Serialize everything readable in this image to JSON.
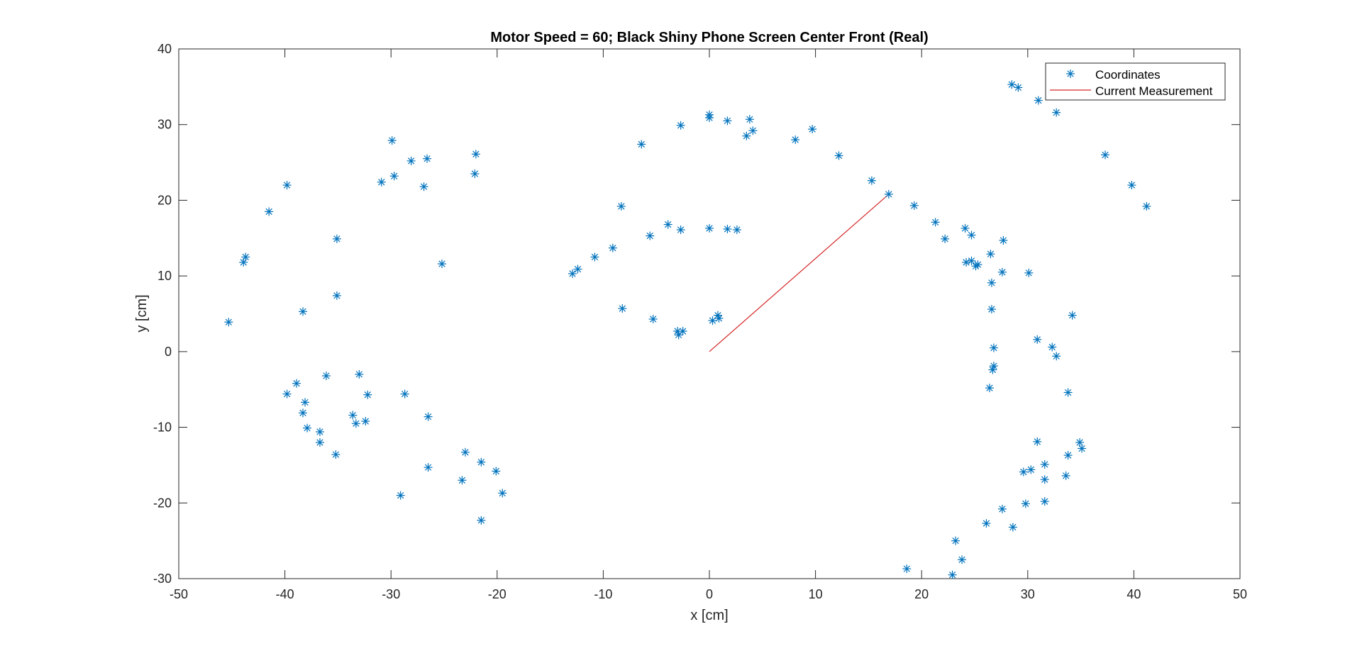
{
  "chart_data": {
    "type": "scatter",
    "title": "Motor Speed = 60; Black Shiny Phone Screen Center Front (Real)",
    "xlabel": "x [cm]",
    "ylabel": "y [cm]",
    "xlim": [
      -50,
      50
    ],
    "ylim": [
      -30,
      40
    ],
    "xticks": [
      -50,
      -40,
      -30,
      -20,
      -10,
      0,
      10,
      20,
      30,
      40,
      50
    ],
    "yticks": [
      -30,
      -20,
      -10,
      0,
      10,
      20,
      30,
      40
    ],
    "xtick_labels": [
      "-50",
      "-40",
      "-30",
      "-20",
      "-10",
      "0",
      "10",
      "20",
      "30",
      "40",
      "50"
    ],
    "ytick_labels": [
      "-30",
      "-20",
      "-10",
      "0",
      "10",
      "20",
      "30",
      "40"
    ],
    "grid": false,
    "legend": {
      "position": "top-right",
      "entries": [
        "Coordinates",
        "Current Measurement"
      ]
    },
    "colors": {
      "coordinates": "#0072BD",
      "current_measurement": "#D62728",
      "axes": "#262626"
    },
    "series": [
      {
        "name": "Coordinates",
        "marker": "asterisk",
        "points": [
          [
            -45.3,
            3.9
          ],
          [
            -43.9,
            11.8
          ],
          [
            -43.7,
            12.5
          ],
          [
            -41.5,
            18.5
          ],
          [
            -39.8,
            22.0
          ],
          [
            -38.3,
            5.3
          ],
          [
            -35.1,
            14.9
          ],
          [
            -35.1,
            7.4
          ],
          [
            -29.9,
            27.9
          ],
          [
            -30.9,
            22.4
          ],
          [
            -29.7,
            23.2
          ],
          [
            -28.1,
            25.2
          ],
          [
            -26.6,
            25.5
          ],
          [
            -26.9,
            21.8
          ],
          [
            -25.2,
            11.6
          ],
          [
            -22.0,
            26.1
          ],
          [
            -22.1,
            23.5
          ],
          [
            -39.8,
            -5.6
          ],
          [
            -38.9,
            -4.2
          ],
          [
            -38.1,
            -6.7
          ],
          [
            -38.3,
            -8.1
          ],
          [
            -37.9,
            -10.1
          ],
          [
            -36.7,
            -10.6
          ],
          [
            -36.7,
            -12.0
          ],
          [
            -36.1,
            -3.2
          ],
          [
            -35.2,
            -13.6
          ],
          [
            -33.6,
            -8.4
          ],
          [
            -33.3,
            -9.5
          ],
          [
            -33.0,
            -3.0
          ],
          [
            -32.4,
            -9.2
          ],
          [
            -32.2,
            -5.7
          ],
          [
            -28.7,
            -5.6
          ],
          [
            -29.1,
            -19.0
          ],
          [
            -26.5,
            -8.6
          ],
          [
            -26.5,
            -15.3
          ],
          [
            -23.0,
            -13.3
          ],
          [
            -23.3,
            -17.0
          ],
          [
            -21.5,
            -14.6
          ],
          [
            -21.5,
            -22.3
          ],
          [
            -20.1,
            -15.8
          ],
          [
            -19.5,
            -18.7
          ],
          [
            -12.9,
            10.3
          ],
          [
            -12.4,
            10.9
          ],
          [
            -10.8,
            12.5
          ],
          [
            -9.1,
            13.7
          ],
          [
            -8.3,
            19.2
          ],
          [
            -6.4,
            27.4
          ],
          [
            -5.6,
            15.3
          ],
          [
            -3.9,
            16.8
          ],
          [
            -2.7,
            16.1
          ],
          [
            -2.7,
            29.9
          ],
          [
            -8.2,
            5.7
          ],
          [
            -5.3,
            4.3
          ],
          [
            -3.0,
            2.7
          ],
          [
            -2.9,
            2.2
          ],
          [
            -2.5,
            2.7
          ],
          [
            0.0,
            31.3
          ],
          [
            0.0,
            30.9
          ],
          [
            0.0,
            16.3
          ],
          [
            0.3,
            4.1
          ],
          [
            0.8,
            4.8
          ],
          [
            0.9,
            4.4
          ],
          [
            1.7,
            30.5
          ],
          [
            1.7,
            16.2
          ],
          [
            2.6,
            16.1
          ],
          [
            3.5,
            28.5
          ],
          [
            3.8,
            30.7
          ],
          [
            4.1,
            29.2
          ],
          [
            8.1,
            28.0
          ],
          [
            9.7,
            29.4
          ],
          [
            12.2,
            25.9
          ],
          [
            15.3,
            22.6
          ],
          [
            16.9,
            20.8
          ],
          [
            19.3,
            19.3
          ],
          [
            21.3,
            17.1
          ],
          [
            22.2,
            14.9
          ],
          [
            24.1,
            16.3
          ],
          [
            24.7,
            15.4
          ],
          [
            24.2,
            11.8
          ],
          [
            24.7,
            12.0
          ],
          [
            25.1,
            11.3
          ],
          [
            25.3,
            11.5
          ],
          [
            26.5,
            12.9
          ],
          [
            27.7,
            14.7
          ],
          [
            27.6,
            10.5
          ],
          [
            26.6,
            9.1
          ],
          [
            30.1,
            10.4
          ],
          [
            26.6,
            5.6
          ],
          [
            26.8,
            0.5
          ],
          [
            26.8,
            -1.9
          ],
          [
            26.7,
            -2.4
          ],
          [
            26.4,
            -4.8
          ],
          [
            30.9,
            1.6
          ],
          [
            32.3,
            0.6
          ],
          [
            32.7,
            -0.6
          ],
          [
            34.2,
            4.8
          ],
          [
            33.8,
            -5.4
          ],
          [
            28.5,
            35.3
          ],
          [
            29.1,
            34.9
          ],
          [
            31.0,
            33.2
          ],
          [
            32.7,
            31.6
          ],
          [
            37.3,
            26.0
          ],
          [
            39.8,
            22.0
          ],
          [
            41.2,
            19.2
          ],
          [
            30.9,
            -11.9
          ],
          [
            31.6,
            -14.9
          ],
          [
            31.6,
            -16.9
          ],
          [
            31.6,
            -19.8
          ],
          [
            30.3,
            -15.6
          ],
          [
            29.6,
            -15.9
          ],
          [
            29.8,
            -20.1
          ],
          [
            27.6,
            -20.8
          ],
          [
            28.6,
            -23.2
          ],
          [
            26.1,
            -22.7
          ],
          [
            33.8,
            -13.7
          ],
          [
            33.6,
            -16.4
          ],
          [
            34.9,
            -12.0
          ],
          [
            35.1,
            -12.8
          ],
          [
            23.8,
            -27.5
          ],
          [
            23.2,
            -25.0
          ],
          [
            22.9,
            -29.5
          ],
          [
            18.6,
            -28.7
          ]
        ]
      },
      {
        "name": "Current Measurement",
        "style": "line",
        "points": [
          [
            0,
            0
          ],
          [
            16.9,
            20.8
          ]
        ]
      }
    ]
  }
}
